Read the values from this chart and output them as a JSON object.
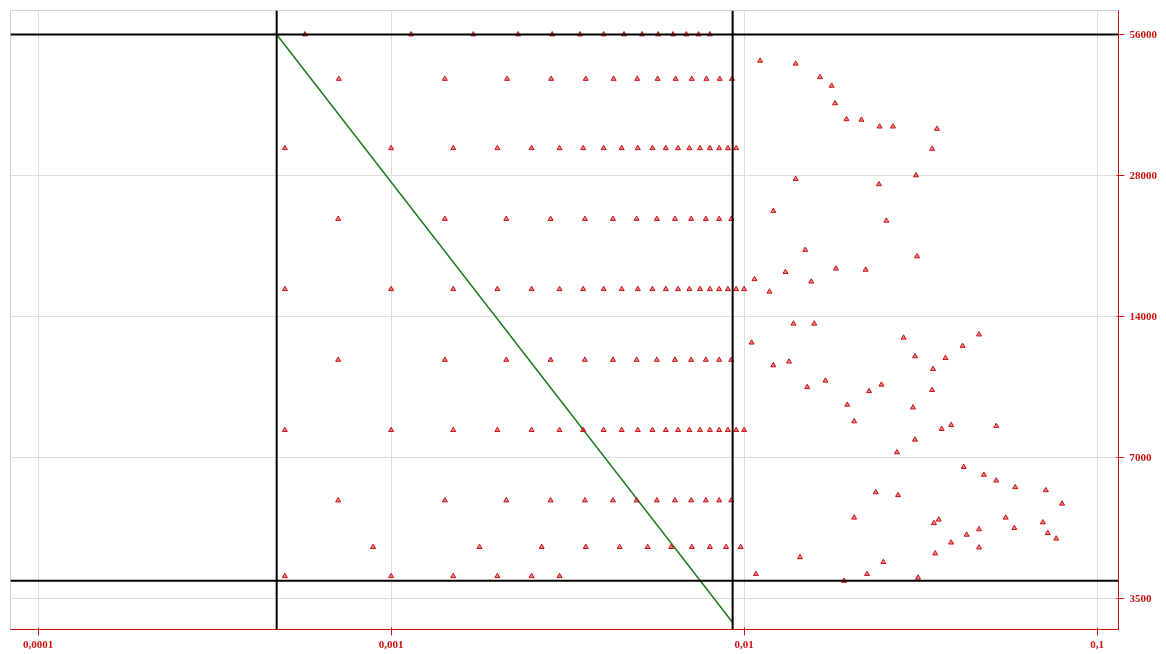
{
  "chart_data": {
    "type": "scatter",
    "log": "xy",
    "grid": true,
    "marker": "triangle",
    "xlim": [
      8.35e-05,
      0.115
    ],
    "ylim": [
      3000,
      63000
    ],
    "xticks": [
      {
        "value": 0.0001,
        "label": "0,0001"
      },
      {
        "value": 0.001,
        "label": "0,001"
      },
      {
        "value": 0.01,
        "label": "0,01"
      },
      {
        "value": 0.1,
        "label": "0,1"
      }
    ],
    "yticks": [
      3500,
      7000,
      14000,
      28000,
      56000
    ],
    "ref_lines": [
      {
        "axis": "x",
        "value": 0.000474,
        "color": "#000000"
      },
      {
        "axis": "x",
        "value": 0.00928,
        "color": "#000000"
      },
      {
        "axis": "y",
        "value": 56000,
        "color": "#000000"
      },
      {
        "axis": "y",
        "value": 3815,
        "color": "#000000"
      }
    ],
    "series": [
      {
        "type": "line",
        "marker": "none",
        "color": "#1a7a1a",
        "x": [
          0.000474,
          0.00928
        ],
        "values": [
          56000,
          3106
        ]
      },
      {
        "color": "#cc1111",
        "x": [
          0.00057,
          0.00114,
          0.00171,
          0.00229,
          0.00286,
          0.00343,
          0.004,
          0.00457,
          0.00514,
          0.00571,
          0.00629,
          0.00686,
          0.00743,
          0.008
        ],
        "values": [
          56000,
          56000,
          56000,
          56000,
          56000,
          56000,
          56000,
          56000,
          56000,
          56000,
          56000,
          56000,
          56000,
          56000
        ]
      },
      {
        "color": "#cc1111",
        "x": [
          0.000711,
          0.00142,
          0.00213,
          0.00284,
          0.00356,
          0.00427,
          0.00498,
          0.00569,
          0.0064,
          0.00711,
          0.00782,
          0.00853,
          0.00924
        ],
        "values": [
          45000,
          45000,
          45000,
          45000,
          45000,
          45000,
          45000,
          45000,
          45000,
          45000,
          45000,
          45000,
          45000
        ]
      },
      {
        "color": "#cc1111",
        "x": [
          0.0005,
          0.001,
          0.0015,
          0.002,
          0.0025,
          0.003,
          0.0035,
          0.004,
          0.0045,
          0.005,
          0.0055,
          0.006,
          0.0065,
          0.007,
          0.0075,
          0.008,
          0.0085,
          0.009,
          0.0095
        ],
        "values": [
          32000,
          32000,
          32000,
          32000,
          32000,
          32000,
          32000,
          32000,
          32000,
          32000,
          32000,
          32000,
          32000,
          32000,
          32000,
          32000,
          32000,
          32000,
          32000
        ]
      },
      {
        "color": "#cc1111",
        "x": [
          0.000708,
          0.00142,
          0.00212,
          0.00283,
          0.00354,
          0.00425,
          0.00496,
          0.00566,
          0.00637,
          0.00708,
          0.00779,
          0.0085,
          0.0092
        ],
        "values": [
          22600,
          22600,
          22600,
          22600,
          22600,
          22600,
          22600,
          22600,
          22600,
          22600,
          22600,
          22600,
          22600
        ]
      },
      {
        "color": "#cc1111",
        "x": [
          0.0005,
          0.001,
          0.0015,
          0.002,
          0.0025,
          0.003,
          0.0035,
          0.004,
          0.0045,
          0.005,
          0.0055,
          0.006,
          0.0065,
          0.007,
          0.0075,
          0.008,
          0.0085,
          0.009,
          0.0095,
          0.01
        ],
        "values": [
          16000,
          16000,
          16000,
          16000,
          16000,
          16000,
          16000,
          16000,
          16000,
          16000,
          16000,
          16000,
          16000,
          16000,
          16000,
          16000,
          16000,
          16000,
          16000,
          16000
        ]
      },
      {
        "color": "#cc1111",
        "x": [
          0.000708,
          0.00142,
          0.00212,
          0.00283,
          0.00354,
          0.00425,
          0.00496,
          0.00566,
          0.00637,
          0.00708,
          0.00779,
          0.0085,
          0.0092
        ],
        "values": [
          11300,
          11300,
          11300,
          11300,
          11300,
          11300,
          11300,
          11300,
          11300,
          11300,
          11300,
          11300,
          11300
        ]
      },
      {
        "color": "#cc1111",
        "x": [
          0.0005,
          0.001,
          0.0015,
          0.002,
          0.0025,
          0.003,
          0.0035,
          0.004,
          0.0045,
          0.005,
          0.0055,
          0.006,
          0.0065,
          0.007,
          0.0075,
          0.008,
          0.0085,
          0.009,
          0.0095,
          0.01
        ],
        "values": [
          8000,
          8000,
          8000,
          8000,
          8000,
          8000,
          8000,
          8000,
          8000,
          8000,
          8000,
          8000,
          8000,
          8000,
          8000,
          8000,
          8000,
          8000,
          8000,
          8000
        ]
      },
      {
        "color": "#cc1111",
        "x": [
          0.000708,
          0.00142,
          0.00212,
          0.00283,
          0.00354,
          0.00425,
          0.00496,
          0.00566,
          0.00637,
          0.00708,
          0.00779,
          0.0085,
          0.0092
        ],
        "values": [
          5660,
          5660,
          5660,
          5660,
          5660,
          5660,
          5660,
          5660,
          5660,
          5660,
          5660,
          5660,
          5660
        ]
      },
      {
        "color": "#cc1111",
        "x": [
          0.000889,
          0.00178,
          0.00267,
          0.00356,
          0.00444,
          0.00533,
          0.00622,
          0.00711,
          0.008,
          0.00889,
          0.00978
        ],
        "values": [
          4500,
          4500,
          4500,
          4500,
          4500,
          4500,
          4500,
          4500,
          4500,
          4500,
          4500
        ]
      },
      {
        "color": "#cc1111",
        "x": [
          0.0005,
          0.001,
          0.0015,
          0.002,
          0.0025,
          0.003
        ],
        "values": [
          3900,
          3900,
          3900,
          3900,
          3900,
          3900
        ]
      },
      {
        "color": "#cc1111",
        "x": [
          0.0111,
          0.014,
          0.0164,
          0.0177,
          0.0181,
          0.0195,
          0.0215,
          0.0242,
          0.0264,
          0.0352,
          0.0341,
          0.0307,
          0.0241,
          0.0253,
          0.0309,
          0.0221,
          0.0182,
          0.0155,
          0.0118,
          0.0463,
          0.0416,
          0.0372,
          0.0343,
          0.0341,
          0.0305,
          0.0283,
          0.0518,
          0.0386,
          0.0363,
          0.0305,
          0.0271,
          0.0419,
          0.0478,
          0.0518,
          0.0586,
          0.0716,
          0.0796,
          0.0551,
          0.0702,
          0.0725,
          0.0766,
          0.0583,
          0.0463,
          0.0463,
          0.0427,
          0.0386,
          0.0356,
          0.0345,
          0.0348,
          0.0311,
          0.0248,
          0.0223,
          0.0192,
          0.0108,
          0.0144,
          0.0205,
          0.0236,
          0.0273,
          0.0301,
          0.0205,
          0.0226,
          0.0245,
          0.0196,
          0.017,
          0.0151,
          0.0134,
          0.0121,
          0.0105,
          0.0158,
          0.0138,
          0.014,
          0.0121,
          0.0149,
          0.0131,
          0.0107
        ],
        "values": [
          49200,
          48500,
          45400,
          43500,
          39900,
          36900,
          36800,
          35600,
          35600,
          35200,
          31900,
          28000,
          26800,
          22400,
          18800,
          17600,
          17700,
          16600,
          15800,
          12800,
          12100,
          11400,
          10800,
          9740,
          11500,
          12600,
          8160,
          8200,
          8040,
          7630,
          7170,
          6670,
          6420,
          6240,
          6040,
          5950,
          5570,
          5200,
          5080,
          4820,
          4690,
          4940,
          4910,
          4490,
          4780,
          4600,
          5150,
          5060,
          4360,
          3870,
          4180,
          3940,
          3810,
          3940,
          4280,
          5200,
          5890,
          5810,
          8940,
          8350,
          9690,
          10000,
          9060,
          10200,
          9880,
          11200,
          11000,
          12300,
          13500,
          13500,
          27500,
          23500,
          19400,
          17400,
          16800
        ]
      }
    ]
  }
}
